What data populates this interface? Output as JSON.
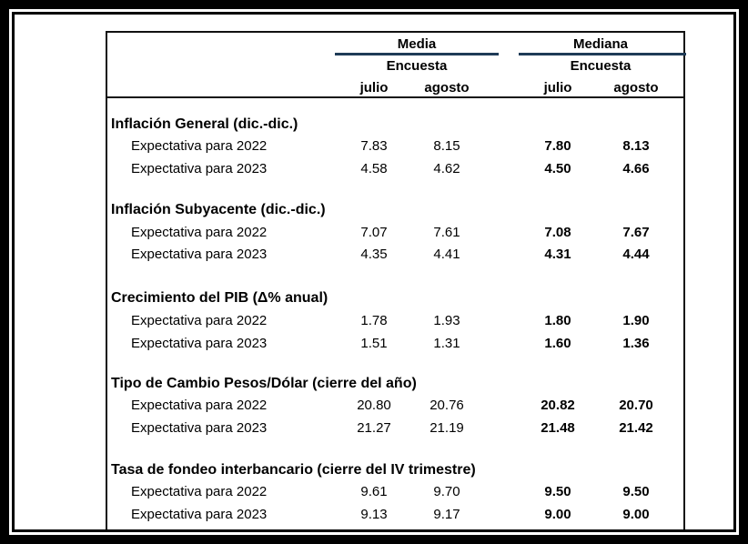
{
  "header": {
    "media": "Media",
    "mediana": "Mediana",
    "encuesta_1": "Encuesta",
    "encuesta_2": "Encuesta",
    "julio_1": "julio",
    "agosto_1": "agosto",
    "julio_2": "julio",
    "agosto_2": "agosto"
  },
  "sections": [
    {
      "title": "Inflación General (dic.-dic.)",
      "rows": [
        {
          "label": "Expectativa para 2022",
          "v": [
            "7.83",
            "8.15",
            "7.80",
            "8.13"
          ]
        },
        {
          "label": "Expectativa para 2023",
          "v": [
            "4.58",
            "4.62",
            "4.50",
            "4.66"
          ]
        }
      ]
    },
    {
      "title": "Inflación Subyacente (dic.-dic.)",
      "rows": [
        {
          "label": "Expectativa para 2022",
          "v": [
            "7.07",
            "7.61",
            "7.08",
            "7.67"
          ]
        },
        {
          "label": "Expectativa para 2023",
          "v": [
            "4.35",
            "4.41",
            "4.31",
            "4.44"
          ]
        }
      ]
    },
    {
      "title": "Crecimiento del PIB (Δ% anual)",
      "rows": [
        {
          "label": "Expectativa para 2022",
          "v": [
            "1.78",
            "1.93",
            "1.80",
            "1.90"
          ]
        },
        {
          "label": "Expectativa para 2023",
          "v": [
            "1.51",
            "1.31",
            "1.60",
            "1.36"
          ]
        }
      ]
    },
    {
      "title": "Tipo de Cambio Pesos/Dólar (cierre del año)",
      "rows": [
        {
          "label": "Expectativa para 2022",
          "v": [
            "20.80",
            "20.76",
            "20.82",
            "20.70"
          ]
        },
        {
          "label": "Expectativa para 2023",
          "v": [
            "21.27",
            "21.19",
            "21.48",
            "21.42"
          ]
        }
      ]
    },
    {
      "title": "Tasa de fondeo interbancario (cierre del IV trimestre)",
      "rows": [
        {
          "label": "Expectativa para 2022",
          "v": [
            "9.61",
            "9.70",
            "9.50",
            "9.50"
          ]
        },
        {
          "label": "Expectativa para 2023",
          "v": [
            "9.13",
            "9.17",
            "9.00",
            "9.00"
          ]
        }
      ]
    }
  ],
  "colors": {
    "header_rule": "#1f3b57"
  }
}
